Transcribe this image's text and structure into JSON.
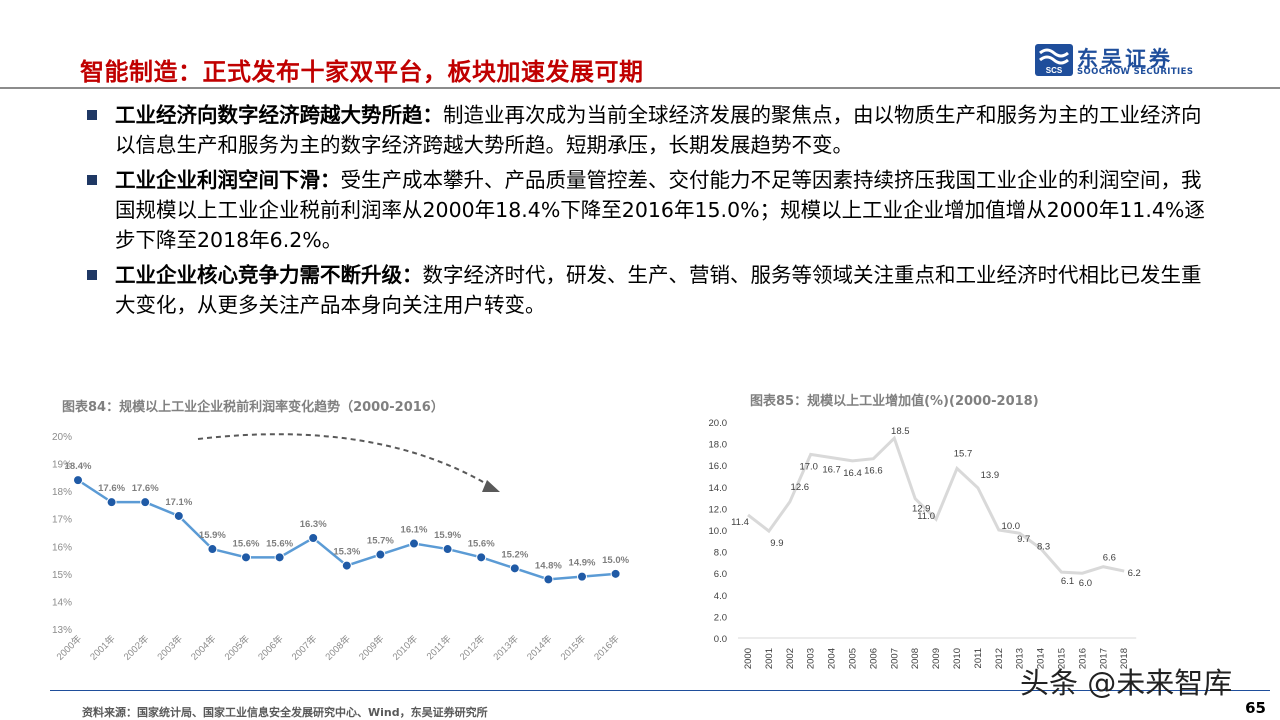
{
  "slide": {
    "title": "智能制造：正式发布十家双平台，板块加速发展可期",
    "logo_cn": "东吴证券",
    "logo_en": "SOOCHOW SECURITIES",
    "logo_mark_text": "SCS",
    "brand_color": "#1f4e9b",
    "title_color": "#c00000"
  },
  "bullets": [
    {
      "lead": "工业经济向数字经济跨越大势所趋：",
      "text": "制造业再次成为当前全球经济发展的聚焦点，由以物质生产和服务为主的工业经济向以信息生产和服务为主的数字经济跨越大势所趋。短期承压，长期发展趋势不变。"
    },
    {
      "lead": "工业企业利润空间下滑：",
      "text": "受生产成本攀升、产品质量管控差、交付能力不足等因素持续挤压我国工业企业的利润空间，我国规模以上工业企业税前利润率从2000年18.4%下降至2016年15.0%；规模以上工业企业增加值增从2000年11.4%逐步下降至2018年6.2%。"
    },
    {
      "lead": "工业企业核心竞争力需不断升级：",
      "text": "数字经济时代，研发、生产、营销、服务等领域关注重点和工业经济时代相比已发生重大变化，从更多关注产品本身向关注用户转变。"
    }
  ],
  "chart_data": [
    {
      "type": "line",
      "title": "图表84：规模以上工业企业税前利润率变化趋势（2000-2016）",
      "categories": [
        "2000年",
        "2001年",
        "2002年",
        "2003年",
        "2004年",
        "2005年",
        "2006年",
        "2007年",
        "2008年",
        "2009年",
        "2010年",
        "2011年",
        "2012年",
        "2013年",
        "2014年",
        "2015年",
        "2016年"
      ],
      "values": [
        18.4,
        17.6,
        17.6,
        17.1,
        15.9,
        15.6,
        15.6,
        16.3,
        15.3,
        15.7,
        16.1,
        15.9,
        15.6,
        15.2,
        14.8,
        14.9,
        15.0
      ],
      "data_labels": [
        "18.4%",
        "17.6%",
        "17.6%",
        "17.1%",
        "15.9%",
        "15.6%",
        "15.6%",
        "16.3%",
        "15.3%",
        "15.7%",
        "16.1%",
        "15.9%",
        "15.6%",
        "15.2%",
        "14.8%",
        "14.9%",
        "15.0%"
      ],
      "yticks": [
        "13%",
        "14%",
        "15%",
        "16%",
        "17%",
        "18%",
        "19%",
        "20%"
      ],
      "ylim": [
        13,
        20
      ],
      "line_color": "#5b9bd5",
      "marker_color": "#1f5aa6",
      "label_color": "#7f7f7f",
      "annotation": "dashed downward trend arrow"
    },
    {
      "type": "line",
      "title": "图表85：规模以上工业增加值(%)(2000-2018)",
      "categories": [
        "2000",
        "2001",
        "2002",
        "2003",
        "2004",
        "2005",
        "2006",
        "2007",
        "2008",
        "2009",
        "2010",
        "2011",
        "2012",
        "2013",
        "2014",
        "2015",
        "2016",
        "2017",
        "2018"
      ],
      "values": [
        11.4,
        9.9,
        12.6,
        17.0,
        16.7,
        16.4,
        16.6,
        18.5,
        12.9,
        11.0,
        15.7,
        13.9,
        10.0,
        9.7,
        8.3,
        6.1,
        6.0,
        6.6,
        6.2
      ],
      "data_labels": [
        "11.4",
        "9.9",
        "12.6",
        "17.0",
        "16.7",
        "16.4",
        "16.6",
        "18.5",
        "12.9",
        "11.0",
        "15.7",
        "13.9",
        "10.0",
        "9.7",
        "8.3",
        "6.1",
        "6.0",
        "6.6",
        "6.2"
      ],
      "yticks": [
        "0.0",
        "2.0",
        "4.0",
        "6.0",
        "8.0",
        "10.0",
        "12.0",
        "14.0",
        "16.0",
        "18.0",
        "20.0"
      ],
      "ylim": [
        0,
        20
      ],
      "line_color": "#d9d9d9"
    }
  ],
  "footer": {
    "source": "资料来源：国家统计局、国家工业信息安全发展研究中心、Wind，东吴证券研究所",
    "page": "65",
    "watermark": "头条 @未来智库"
  }
}
